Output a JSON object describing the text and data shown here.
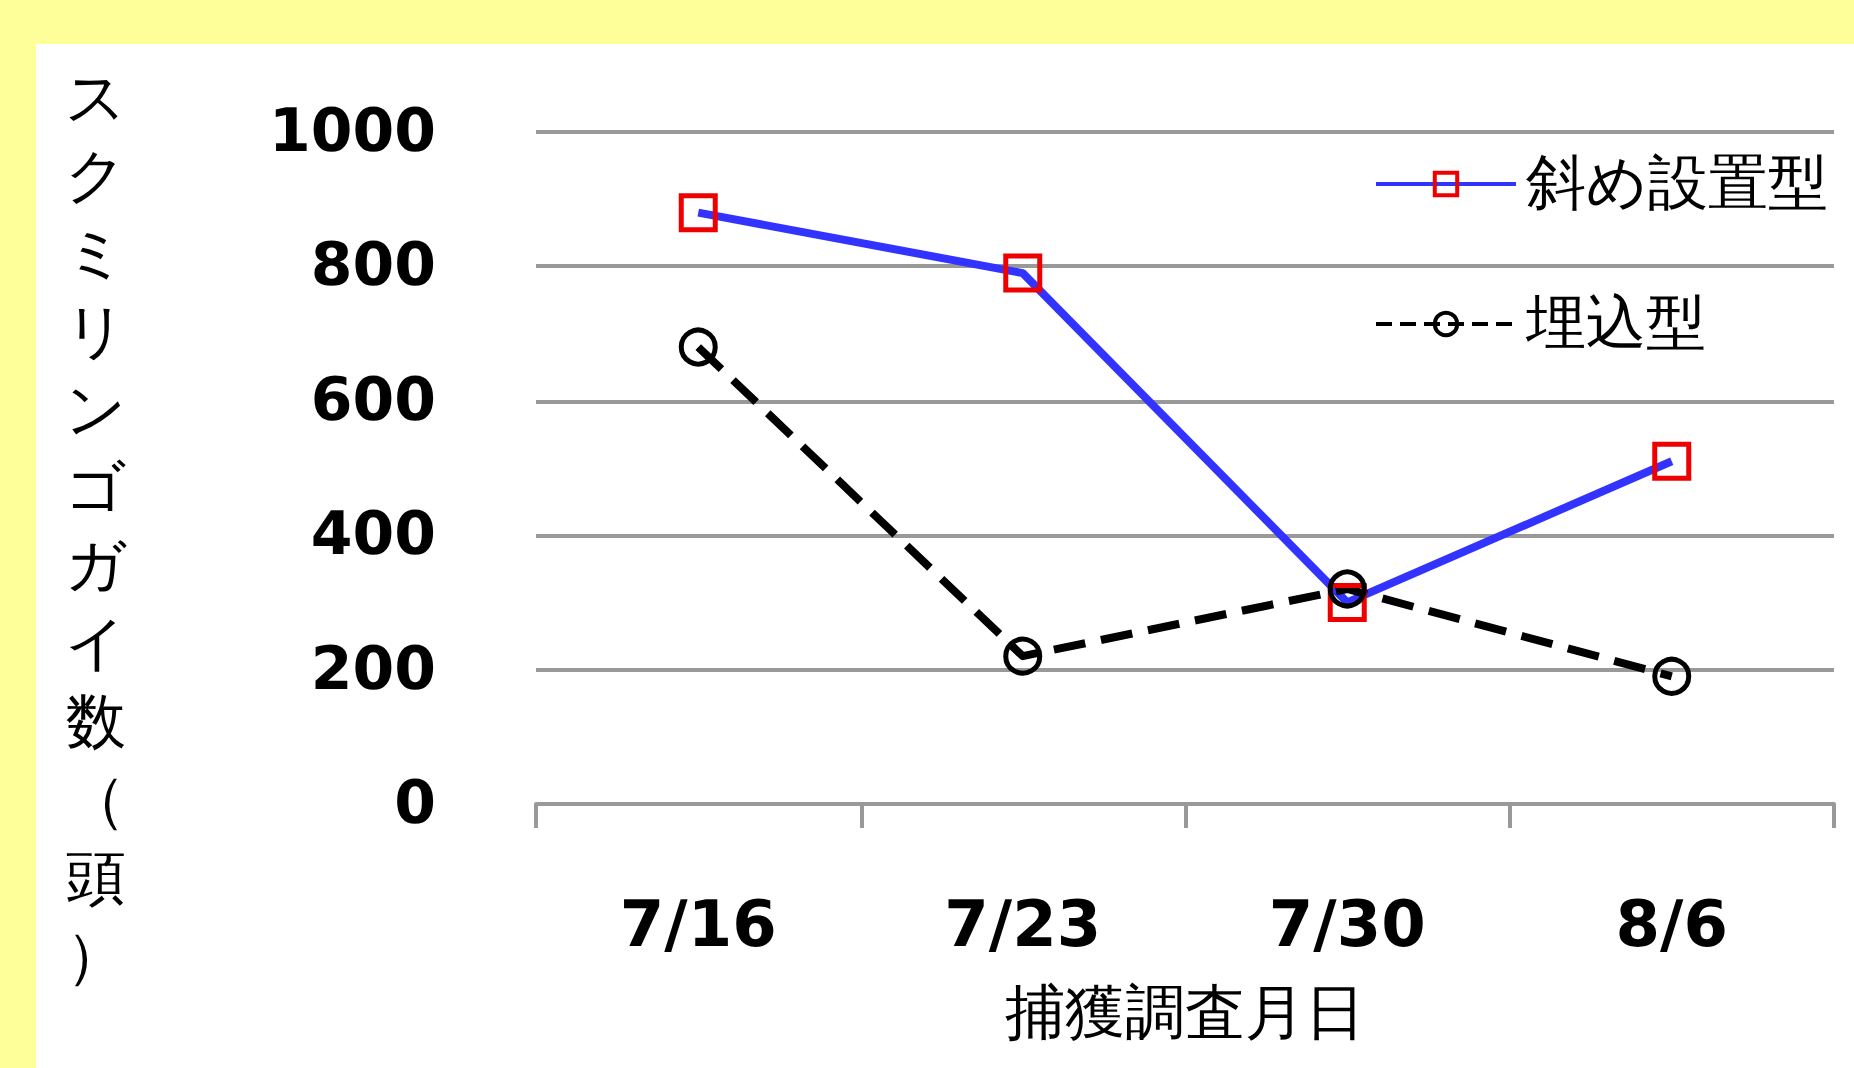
{
  "chart_data": {
    "type": "line",
    "xlabel": "捕獲調査月日",
    "ylabel": "スクミリンゴガイ数（頭）",
    "categories": [
      "7/16",
      "7/23",
      "7/30",
      "8/6"
    ],
    "series": [
      {
        "name": "斜め設置型",
        "color": "#3333ff",
        "marker": "square",
        "line_style": "solid",
        "values": [
          880,
          790,
          300,
          510
        ]
      },
      {
        "name": "埋込型",
        "color": "#000000",
        "marker": "circle",
        "line_style": "dashed",
        "values": [
          680,
          220,
          320,
          190
        ]
      }
    ],
    "ylim": [
      0,
      1000
    ],
    "yticks": [
      0,
      200,
      400,
      600,
      800,
      1000
    ],
    "grid": "y",
    "legend": "top right"
  }
}
